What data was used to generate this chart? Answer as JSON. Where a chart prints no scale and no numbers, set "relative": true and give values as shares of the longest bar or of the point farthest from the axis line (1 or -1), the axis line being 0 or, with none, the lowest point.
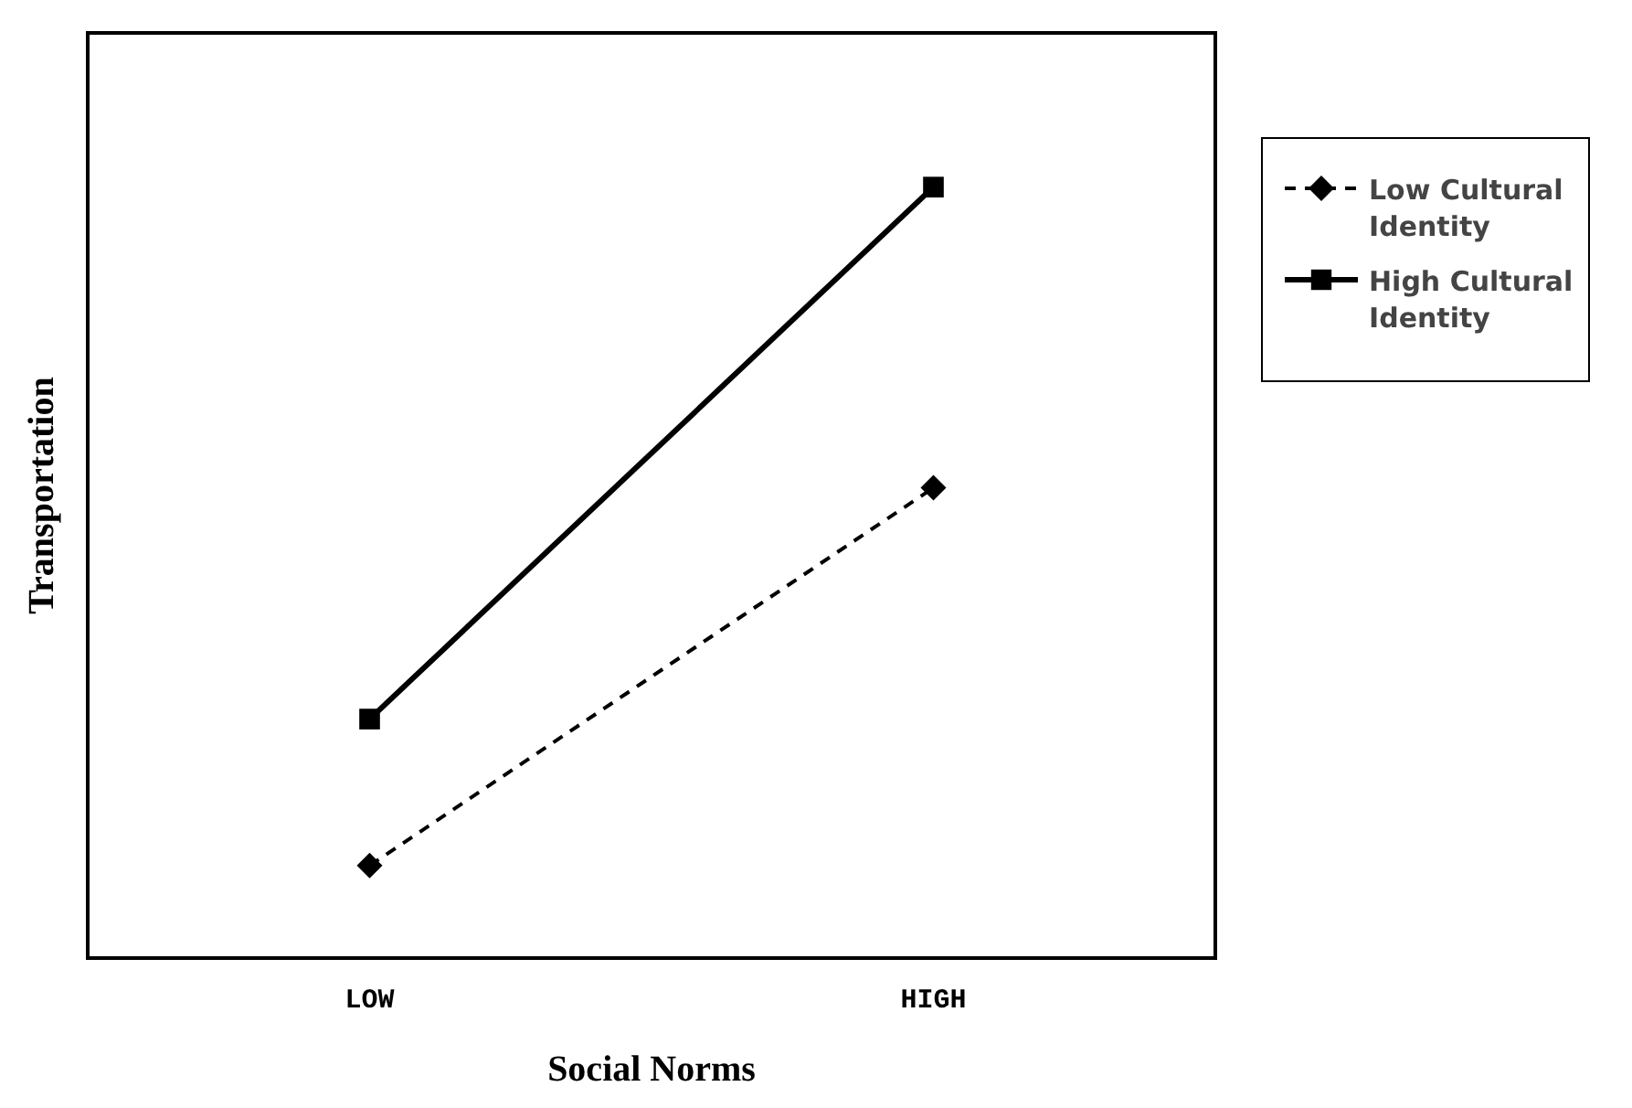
{
  "chart_data": {
    "type": "line",
    "relative": true,
    "xlabel": "Social Norms",
    "ylabel": "Transportation",
    "categories": [
      "LOW",
      "HIGH"
    ],
    "series": [
      {
        "name": "Low Cultural Identity",
        "color": "#000000",
        "values": [
          0.12,
          0.61
        ],
        "marker": "diamond",
        "line_style": "dashed"
      },
      {
        "name": "High Cultural Identity",
        "color": "#000000",
        "values": [
          0.31,
          1
        ],
        "marker": "square",
        "line_style": "solid"
      }
    ],
    "legend": "right",
    "grid": false
  }
}
